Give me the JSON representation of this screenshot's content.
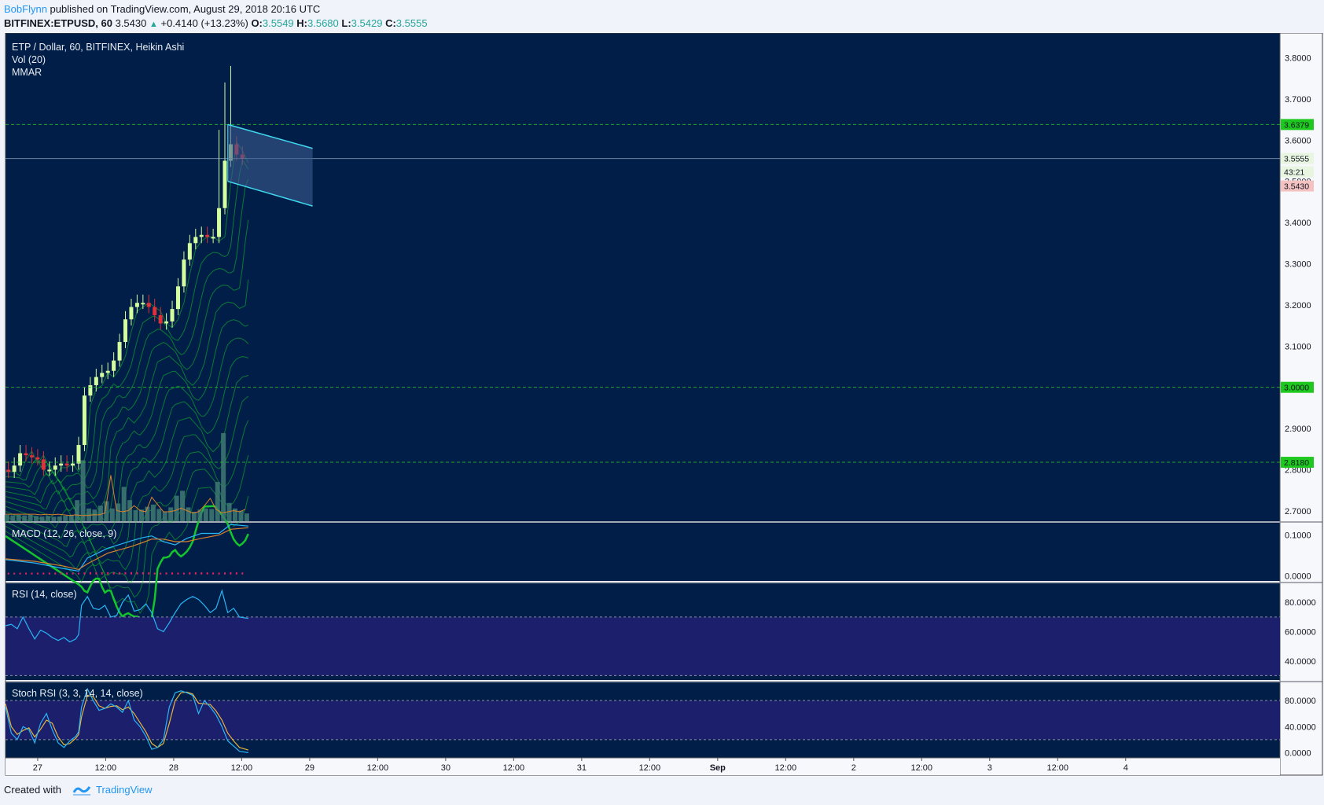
{
  "header": {
    "author": "BobFlynn",
    "published_text": "published on TradingView.com, August 29, 2018 20:16 UTC",
    "symbol": "BITFINEX:ETPUSD, 60",
    "last": "3.5430",
    "change": "+0.4140 (+13.23%)",
    "o_label": "O:",
    "o_value": "3.5549",
    "h_label": "H:",
    "h_value": "3.5680",
    "l_label": "L:",
    "l_value": "3.5429",
    "c_label": "C:",
    "c_value": "3.5555"
  },
  "footer": {
    "created_with": "Created with",
    "brand": "TradingView"
  },
  "colors": {
    "chart_bg": "#001e47",
    "candle_up": "#d4ff9e",
    "candle_down": "#e0303c",
    "mmar": "#13c62c",
    "volume": "#3f7a72",
    "macd": "#29b6f6",
    "signal": "#d9822b",
    "hist": "#e91e63",
    "rsi": "#29b6f6",
    "band": "#1c1f6b",
    "stoch_k": "#29b6f6",
    "stoch_d": "#e6b33c",
    "channel": "#3fd9f0",
    "hline": "#28c828",
    "price_tag_green": "#1ec81e",
    "price_tag_red": "#f5c2c2"
  },
  "chart_data": [
    {
      "type": "candlestick",
      "title": "ETP / Dollar, 60, BITFINEX, Heikin Ashi",
      "indicators": [
        "Vol (20)",
        "MMAR"
      ],
      "y_ticks": [
        "3.8000",
        "3.7000",
        "3.6000",
        "3.5000",
        "3.4000",
        "3.3000",
        "3.2000",
        "3.1000",
        "3.0000",
        "2.9000",
        "2.8000",
        "2.7000"
      ],
      "ylim": [
        2.675,
        3.86
      ],
      "x_ticks": [
        "27",
        "12:00",
        "28",
        "12:00",
        "29",
        "12:00",
        "30",
        "12:00",
        "31",
        "12:00",
        "Sep",
        "12:00",
        "2",
        "12:00",
        "3",
        "12:00",
        "4"
      ],
      "price_labels": [
        {
          "value": "3.6379",
          "kind": "level"
        },
        {
          "value": "3.5555",
          "kind": "last"
        },
        {
          "value": "43:21",
          "kind": "countdown"
        },
        {
          "value": "3.5430",
          "kind": "low"
        },
        {
          "value": "3.0000",
          "kind": "level"
        },
        {
          "value": "2.8180",
          "kind": "level"
        }
      ],
      "levels": [
        3.6379,
        3.0,
        2.818
      ],
      "last_price_line": 3.5555,
      "close_path": [
        [
          0,
          2.8
        ],
        [
          0.04,
          2.79
        ],
        [
          0.08,
          2.83
        ],
        [
          0.12,
          2.85
        ],
        [
          0.16,
          2.82
        ],
        [
          0.2,
          2.84
        ],
        [
          0.24,
          2.81
        ],
        [
          0.28,
          2.79
        ],
        [
          0.32,
          2.81
        ],
        [
          0.36,
          2.81
        ],
        [
          0.4,
          2.82
        ],
        [
          0.44,
          2.8
        ],
        [
          0.48,
          2.83
        ],
        [
          0.5,
          2.86
        ],
        [
          0.52,
          2.96
        ],
        [
          0.56,
          3.0
        ],
        [
          0.6,
          3.01
        ],
        [
          0.64,
          3.04
        ],
        [
          0.68,
          3.03
        ],
        [
          0.72,
          3.05
        ],
        [
          0.76,
          3.08
        ],
        [
          0.8,
          3.14
        ],
        [
          0.84,
          3.19
        ],
        [
          0.88,
          3.2
        ],
        [
          0.92,
          3.21
        ],
        [
          0.96,
          3.2
        ],
        [
          1.0,
          3.19
        ],
        [
          1.04,
          3.16
        ],
        [
          1.08,
          3.15
        ],
        [
          1.12,
          3.17
        ],
        [
          1.16,
          3.21
        ],
        [
          1.2,
          3.28
        ],
        [
          1.24,
          3.34
        ],
        [
          1.28,
          3.36
        ],
        [
          1.32,
          3.37
        ],
        [
          1.36,
          3.37
        ],
        [
          1.4,
          3.36
        ],
        [
          1.44,
          3.37
        ],
        [
          1.48,
          3.5
        ],
        [
          1.52,
          3.6
        ],
        [
          1.56,
          3.58
        ],
        [
          1.6,
          3.55
        ],
        [
          1.64,
          3.56
        ],
        [
          1.66,
          3.555
        ]
      ],
      "volume_path": [
        [
          0,
          0.06
        ],
        [
          0.04,
          0.05
        ],
        [
          0.08,
          0.06
        ],
        [
          0.12,
          0.05
        ],
        [
          0.16,
          0.06
        ],
        [
          0.2,
          0.05
        ],
        [
          0.24,
          0.04
        ],
        [
          0.28,
          0.05
        ],
        [
          0.32,
          0.04
        ],
        [
          0.36,
          0.04
        ],
        [
          0.4,
          0.05
        ],
        [
          0.44,
          0.05
        ],
        [
          0.48,
          0.08
        ],
        [
          0.5,
          0.3
        ],
        [
          0.52,
          0.7
        ],
        [
          0.54,
          0.4
        ],
        [
          0.56,
          0.12
        ],
        [
          0.6,
          0.1
        ],
        [
          0.64,
          0.12
        ],
        [
          0.68,
          0.2
        ],
        [
          0.72,
          0.12
        ],
        [
          0.76,
          0.1
        ],
        [
          0.8,
          0.34
        ],
        [
          0.84,
          0.22
        ],
        [
          0.88,
          0.1
        ],
        [
          0.92,
          0.1
        ],
        [
          0.96,
          0.12
        ],
        [
          1.0,
          0.16
        ],
        [
          1.04,
          0.12
        ],
        [
          1.08,
          0.08
        ],
        [
          1.12,
          0.1
        ],
        [
          1.16,
          0.2
        ],
        [
          1.2,
          0.32
        ],
        [
          1.24,
          0.14
        ],
        [
          1.28,
          0.08
        ],
        [
          1.32,
          0.1
        ],
        [
          1.36,
          0.12
        ],
        [
          1.4,
          0.1
        ],
        [
          1.44,
          0.14
        ],
        [
          1.48,
          1.0
        ],
        [
          1.52,
          0.18
        ],
        [
          1.56,
          0.12
        ],
        [
          1.6,
          0.1
        ],
        [
          1.64,
          0.08
        ],
        [
          1.66,
          0.06
        ]
      ],
      "channel": {
        "upper": [
          [
            1.52,
            3.6379
          ],
          [
            2.1,
            3.58
          ]
        ],
        "lower": [
          [
            1.52,
            3.5
          ],
          [
            2.1,
            3.44
          ]
        ]
      }
    },
    {
      "type": "line",
      "title": "MACD (12, 26, close, 9)",
      "y_ticks": [
        "0.1000",
        "0.0000"
      ],
      "ylim": [
        -0.012,
        0.13
      ],
      "macd": [
        [
          0,
          0.04
        ],
        [
          0.2,
          0.032
        ],
        [
          0.4,
          0.018
        ],
        [
          0.5,
          0.012
        ],
        [
          0.56,
          0.044
        ],
        [
          0.7,
          0.068
        ],
        [
          0.86,
          0.086
        ],
        [
          0.94,
          0.094
        ],
        [
          1.0,
          0.098
        ],
        [
          1.08,
          0.084
        ],
        [
          1.16,
          0.076
        ],
        [
          1.24,
          0.092
        ],
        [
          1.34,
          0.104
        ],
        [
          1.46,
          0.104
        ],
        [
          1.54,
          0.126
        ],
        [
          1.66,
          0.122
        ]
      ],
      "signal": [
        [
          0,
          0.042
        ],
        [
          0.2,
          0.036
        ],
        [
          0.4,
          0.024
        ],
        [
          0.5,
          0.016
        ],
        [
          0.56,
          0.03
        ],
        [
          0.7,
          0.056
        ],
        [
          0.86,
          0.072
        ],
        [
          0.94,
          0.082
        ],
        [
          1.0,
          0.09
        ],
        [
          1.08,
          0.09
        ],
        [
          1.16,
          0.084
        ],
        [
          1.24,
          0.084
        ],
        [
          1.34,
          0.092
        ],
        [
          1.46,
          0.1
        ],
        [
          1.54,
          0.114
        ],
        [
          1.66,
          0.118
        ]
      ],
      "hist_scale": 0.12
    },
    {
      "type": "line",
      "title": "RSI (14, close)",
      "y_ticks": [
        "80.0000",
        "60.0000",
        "40.0000"
      ],
      "ylim": [
        27,
        93
      ],
      "band": [
        30,
        70
      ],
      "values": [
        [
          0,
          64
        ],
        [
          0.04,
          65
        ],
        [
          0.08,
          62
        ],
        [
          0.12,
          70
        ],
        [
          0.16,
          62
        ],
        [
          0.2,
          55
        ],
        [
          0.24,
          61
        ],
        [
          0.28,
          59
        ],
        [
          0.32,
          56
        ],
        [
          0.36,
          54
        ],
        [
          0.4,
          56
        ],
        [
          0.44,
          53
        ],
        [
          0.48,
          55
        ],
        [
          0.5,
          58
        ],
        [
          0.52,
          78
        ],
        [
          0.56,
          84
        ],
        [
          0.6,
          76
        ],
        [
          0.64,
          75
        ],
        [
          0.68,
          78
        ],
        [
          0.72,
          70
        ],
        [
          0.76,
          71
        ],
        [
          0.8,
          80
        ],
        [
          0.84,
          85
        ],
        [
          0.88,
          74
        ],
        [
          0.92,
          75
        ],
        [
          0.96,
          79
        ],
        [
          1.0,
          73
        ],
        [
          1.04,
          62
        ],
        [
          1.08,
          60
        ],
        [
          1.12,
          66
        ],
        [
          1.16,
          73
        ],
        [
          1.2,
          79
        ],
        [
          1.24,
          82
        ],
        [
          1.28,
          84
        ],
        [
          1.32,
          82
        ],
        [
          1.36,
          78
        ],
        [
          1.4,
          73
        ],
        [
          1.44,
          76
        ],
        [
          1.48,
          88
        ],
        [
          1.52,
          73
        ],
        [
          1.56,
          76
        ],
        [
          1.6,
          70
        ],
        [
          1.66,
          69
        ]
      ]
    },
    {
      "type": "line",
      "title": "Stoch RSI (3, 3, 14, 14, close)",
      "y_ticks": [
        "80.0000",
        "40.0000",
        "0.0000"
      ],
      "ylim": [
        -8,
        108
      ],
      "band": [
        20,
        80
      ],
      "k": [
        [
          0,
          70
        ],
        [
          0.04,
          30
        ],
        [
          0.08,
          20
        ],
        [
          0.12,
          40
        ],
        [
          0.16,
          35
        ],
        [
          0.2,
          15
        ],
        [
          0.24,
          45
        ],
        [
          0.28,
          60
        ],
        [
          0.32,
          35
        ],
        [
          0.36,
          15
        ],
        [
          0.4,
          8
        ],
        [
          0.44,
          18
        ],
        [
          0.48,
          25
        ],
        [
          0.5,
          32
        ],
        [
          0.52,
          70
        ],
        [
          0.56,
          98
        ],
        [
          0.6,
          80
        ],
        [
          0.64,
          65
        ],
        [
          0.68,
          68
        ],
        [
          0.72,
          75
        ],
        [
          0.76,
          70
        ],
        [
          0.8,
          62
        ],
        [
          0.84,
          80
        ],
        [
          0.88,
          50
        ],
        [
          0.92,
          40
        ],
        [
          0.96,
          25
        ],
        [
          1.0,
          5
        ],
        [
          1.04,
          8
        ],
        [
          1.08,
          20
        ],
        [
          1.12,
          70
        ],
        [
          1.16,
          92
        ],
        [
          1.2,
          95
        ],
        [
          1.24,
          92
        ],
        [
          1.28,
          88
        ],
        [
          1.32,
          60
        ],
        [
          1.36,
          80
        ],
        [
          1.4,
          70
        ],
        [
          1.44,
          58
        ],
        [
          1.48,
          40
        ],
        [
          1.52,
          18
        ],
        [
          1.56,
          10
        ],
        [
          1.6,
          2
        ],
        [
          1.66,
          0
        ]
      ],
      "d": [
        [
          0,
          75
        ],
        [
          0.04,
          40
        ],
        [
          0.08,
          28
        ],
        [
          0.12,
          34
        ],
        [
          0.16,
          38
        ],
        [
          0.2,
          24
        ],
        [
          0.24,
          36
        ],
        [
          0.28,
          50
        ],
        [
          0.32,
          45
        ],
        [
          0.36,
          24
        ],
        [
          0.4,
          12
        ],
        [
          0.44,
          14
        ],
        [
          0.48,
          22
        ],
        [
          0.5,
          28
        ],
        [
          0.52,
          55
        ],
        [
          0.56,
          88
        ],
        [
          0.6,
          86
        ],
        [
          0.64,
          72
        ],
        [
          0.68,
          68
        ],
        [
          0.72,
          71
        ],
        [
          0.76,
          72
        ],
        [
          0.8,
          66
        ],
        [
          0.84,
          70
        ],
        [
          0.88,
          60
        ],
        [
          0.92,
          46
        ],
        [
          0.96,
          32
        ],
        [
          1.0,
          14
        ],
        [
          1.04,
          8
        ],
        [
          1.08,
          14
        ],
        [
          1.12,
          45
        ],
        [
          1.16,
          80
        ],
        [
          1.2,
          92
        ],
        [
          1.24,
          93
        ],
        [
          1.28,
          90
        ],
        [
          1.32,
          76
        ],
        [
          1.36,
          75
        ],
        [
          1.4,
          74
        ],
        [
          1.44,
          64
        ],
        [
          1.48,
          50
        ],
        [
          1.52,
          30
        ],
        [
          1.56,
          18
        ],
        [
          1.6,
          8
        ],
        [
          1.66,
          4
        ]
      ]
    }
  ]
}
